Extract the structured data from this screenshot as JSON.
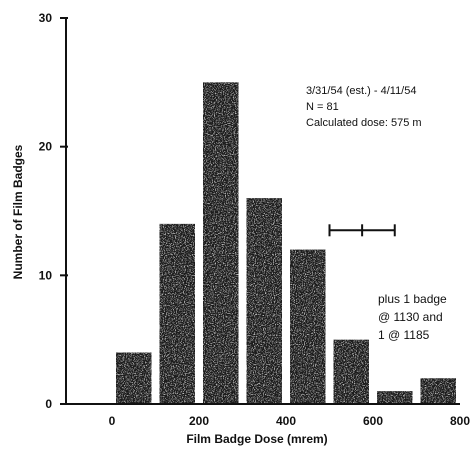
{
  "chart_data": {
    "type": "bar",
    "bins": [
      {
        "x0": 0,
        "x1": 100,
        "count": 4
      },
      {
        "x0": 100,
        "x1": 200,
        "count": 14
      },
      {
        "x0": 200,
        "x1": 300,
        "count": 25
      },
      {
        "x0": 300,
        "x1": 400,
        "count": 16
      },
      {
        "x0": 400,
        "x1": 500,
        "count": 12
      },
      {
        "x0": 500,
        "x1": 600,
        "count": 5
      },
      {
        "x0": 600,
        "x1": 700,
        "count": 1
      },
      {
        "x0": 700,
        "x1": 800,
        "count": 2
      }
    ],
    "xlabel": "Film Badge Dose (mrem)",
    "ylabel": "Number of Film Badges",
    "xlim": [
      0,
      800
    ],
    "ylim": [
      0,
      30
    ],
    "xticks": [
      0,
      200,
      400,
      600,
      800
    ],
    "yticks": [
      0,
      10,
      20,
      30
    ],
    "error_bar": {
      "center": 575,
      "low": 500,
      "high": 650,
      "y": 13.5
    },
    "annotation_lines": [
      "3/31/54 (est.) - 4/11/54",
      "N = 81",
      "Calculated dose: 575 m"
    ],
    "note_lines": [
      "plus 1 badge",
      "@ 1130 and",
      "1 @ 1185"
    ],
    "grid": false,
    "bar_color": "#1a1a1a"
  }
}
